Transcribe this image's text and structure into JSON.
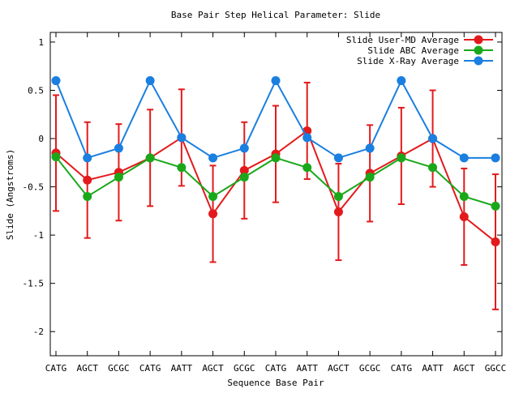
{
  "chart_data": {
    "type": "line",
    "title": "Base Pair Step Helical Parameter: Slide",
    "xlabel": "Sequence Base Pair",
    "ylabel": "Slide (Angstroms)",
    "ylim": [
      -2.25,
      1.1
    ],
    "yticks": [
      1,
      0.5,
      0,
      -0.5,
      -1,
      -1.5,
      -2
    ],
    "ytick_labels": [
      "1",
      "0.5",
      "0",
      "-0.5",
      "-1",
      "-1.5",
      "-2"
    ],
    "categories": [
      "CATG",
      "AGCT",
      "GCGC",
      "CATG",
      "AATT",
      "AGCT",
      "GCGC",
      "CATG",
      "AATT",
      "AGCT",
      "GCGC",
      "CATG",
      "AATT",
      "AGCT",
      "GGCC"
    ],
    "legend_position": "top-right",
    "series": [
      {
        "name": "Slide User-MD Average",
        "color": "#e31a1c",
        "values": [
          -0.15,
          -0.43,
          -0.35,
          -0.2,
          0.01,
          -0.78,
          -0.33,
          -0.16,
          0.08,
          -0.76,
          -0.36,
          -0.18,
          0.0,
          -0.81,
          -1.07
        ],
        "error": [
          0.6,
          0.6,
          0.5,
          0.5,
          0.5,
          0.5,
          0.5,
          0.5,
          0.5,
          0.5,
          0.5,
          0.5,
          0.5,
          0.5,
          0.7
        ]
      },
      {
        "name": "Slide ABC Average",
        "color": "#1aa81a",
        "values": [
          -0.19,
          -0.6,
          -0.4,
          -0.2,
          -0.3,
          -0.6,
          -0.4,
          -0.2,
          -0.3,
          -0.6,
          -0.4,
          -0.2,
          -0.3,
          -0.6,
          -0.7
        ]
      },
      {
        "name": "Slide X-Ray Average",
        "color": "#1a7fe0",
        "values": [
          0.6,
          -0.2,
          -0.1,
          0.6,
          0.01,
          -0.2,
          -0.1,
          0.6,
          0.01,
          -0.2,
          -0.1,
          0.6,
          0.0,
          -0.2,
          -0.2
        ]
      }
    ]
  }
}
